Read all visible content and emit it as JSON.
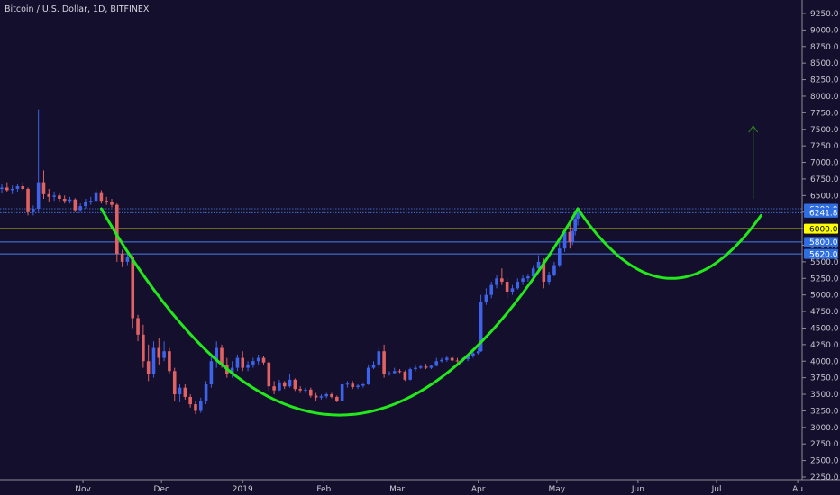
{
  "chart_data": {
    "type": "candlestick",
    "title": "Bitcoin / U.S. Dollar, 1D, BITFINEX",
    "ylim": [
      2250,
      9250
    ],
    "y_ticks": [
      2250,
      2500,
      2750,
      3000,
      3250,
      3500,
      3750,
      4000,
      4250,
      4500,
      4750,
      5000,
      5250,
      5500,
      5750,
      6000,
      6250,
      6500,
      6750,
      7000,
      7250,
      7500,
      7750,
      8000,
      8250,
      8500,
      8750,
      9000,
      9250
    ],
    "y_tick_labels": [
      "2250.0",
      "2500.0",
      "2750.0",
      "3000.0",
      "3250.0",
      "3500.0",
      "3750.0",
      "4000.0",
      "4250.0",
      "4500.0",
      "4750.0",
      "5000.0",
      "5250.0",
      "5500.0",
      "5750.0",
      "6000.0",
      "6250.0",
      "6500.0",
      "6750.0",
      "7000.0",
      "7250.0",
      "7500.0",
      "7750.0",
      "8000.0",
      "8250.0",
      "8500.0",
      "8750.0",
      "9000.0",
      "9250.0"
    ],
    "x_range": [
      "2018-10-01",
      "2019-08-02"
    ],
    "x_ticks": [
      {
        "label": "Nov",
        "date": "2018-11-01"
      },
      {
        "label": "Dec",
        "date": "2018-12-01"
      },
      {
        "label": "2019",
        "date": "2019-01-01"
      },
      {
        "label": "Feb",
        "date": "2019-02-01"
      },
      {
        "label": "Mar",
        "date": "2019-03-01"
      },
      {
        "label": "Apr",
        "date": "2019-04-01"
      },
      {
        "label": "May",
        "date": "2019-05-01"
      },
      {
        "label": "Jun",
        "date": "2019-06-01"
      },
      {
        "label": "Jul",
        "date": "2019-07-01"
      },
      {
        "label": "Au",
        "date": "2019-08-01"
      }
    ],
    "candles": [
      {
        "date": "2018-10-01",
        "o": 6600,
        "h": 6680,
        "l": 6540,
        "c": 6620
      },
      {
        "date": "2018-10-03",
        "o": 6620,
        "h": 6700,
        "l": 6560,
        "c": 6580
      },
      {
        "date": "2018-10-05",
        "o": 6580,
        "h": 6650,
        "l": 6520,
        "c": 6600
      },
      {
        "date": "2018-10-07",
        "o": 6600,
        "h": 6680,
        "l": 6560,
        "c": 6640
      },
      {
        "date": "2018-10-09",
        "o": 6640,
        "h": 6700,
        "l": 6580,
        "c": 6600
      },
      {
        "date": "2018-10-11",
        "o": 6600,
        "h": 6620,
        "l": 6200,
        "c": 6250
      },
      {
        "date": "2018-10-13",
        "o": 6250,
        "h": 6350,
        "l": 6200,
        "c": 6300
      },
      {
        "date": "2018-10-15",
        "o": 6300,
        "h": 7800,
        "l": 6250,
        "c": 6700
      },
      {
        "date": "2018-10-17",
        "o": 6700,
        "h": 6880,
        "l": 6450,
        "c": 6520
      },
      {
        "date": "2018-10-19",
        "o": 6520,
        "h": 6600,
        "l": 6400,
        "c": 6480
      },
      {
        "date": "2018-10-21",
        "o": 6480,
        "h": 6560,
        "l": 6420,
        "c": 6500
      },
      {
        "date": "2018-10-23",
        "o": 6500,
        "h": 6540,
        "l": 6400,
        "c": 6450
      },
      {
        "date": "2018-10-25",
        "o": 6450,
        "h": 6500,
        "l": 6380,
        "c": 6420
      },
      {
        "date": "2018-10-27",
        "o": 6420,
        "h": 6480,
        "l": 6380,
        "c": 6440
      },
      {
        "date": "2018-10-29",
        "o": 6440,
        "h": 6460,
        "l": 6250,
        "c": 6280
      },
      {
        "date": "2018-10-31",
        "o": 6280,
        "h": 6380,
        "l": 6250,
        "c": 6340
      },
      {
        "date": "2018-11-02",
        "o": 6340,
        "h": 6450,
        "l": 6300,
        "c": 6400
      },
      {
        "date": "2018-11-04",
        "o": 6400,
        "h": 6480,
        "l": 6360,
        "c": 6420
      },
      {
        "date": "2018-11-06",
        "o": 6420,
        "h": 6620,
        "l": 6400,
        "c": 6550
      },
      {
        "date": "2018-11-08",
        "o": 6550,
        "h": 6580,
        "l": 6380,
        "c": 6420
      },
      {
        "date": "2018-11-10",
        "o": 6420,
        "h": 6480,
        "l": 6360,
        "c": 6400
      },
      {
        "date": "2018-11-12",
        "o": 6400,
        "h": 6450,
        "l": 6320,
        "c": 6360
      },
      {
        "date": "2018-11-14",
        "o": 6360,
        "h": 6380,
        "l": 5500,
        "c": 5620
      },
      {
        "date": "2018-11-16",
        "o": 5620,
        "h": 5680,
        "l": 5420,
        "c": 5500
      },
      {
        "date": "2018-11-18",
        "o": 5500,
        "h": 5620,
        "l": 5450,
        "c": 5580
      },
      {
        "date": "2018-11-20",
        "o": 5580,
        "h": 5600,
        "l": 4500,
        "c": 4650
      },
      {
        "date": "2018-11-22",
        "o": 4650,
        "h": 4700,
        "l": 4300,
        "c": 4400
      },
      {
        "date": "2018-11-24",
        "o": 4400,
        "h": 4550,
        "l": 3900,
        "c": 4000
      },
      {
        "date": "2018-11-26",
        "o": 4000,
        "h": 4250,
        "l": 3700,
        "c": 3800
      },
      {
        "date": "2018-11-28",
        "o": 3800,
        "h": 4300,
        "l": 3750,
        "c": 4200
      },
      {
        "date": "2018-11-30",
        "o": 4200,
        "h": 4350,
        "l": 3950,
        "c": 4050
      },
      {
        "date": "2018-12-02",
        "o": 4050,
        "h": 4300,
        "l": 4000,
        "c": 4150
      },
      {
        "date": "2018-12-04",
        "o": 4150,
        "h": 4200,
        "l": 3800,
        "c": 3850
      },
      {
        "date": "2018-12-06",
        "o": 3850,
        "h": 3900,
        "l": 3400,
        "c": 3500
      },
      {
        "date": "2018-12-08",
        "o": 3500,
        "h": 3650,
        "l": 3380,
        "c": 3600
      },
      {
        "date": "2018-12-10",
        "o": 3600,
        "h": 3650,
        "l": 3420,
        "c": 3460
      },
      {
        "date": "2018-12-12",
        "o": 3460,
        "h": 3500,
        "l": 3300,
        "c": 3350
      },
      {
        "date": "2018-12-14",
        "o": 3350,
        "h": 3400,
        "l": 3200,
        "c": 3250
      },
      {
        "date": "2018-12-16",
        "o": 3250,
        "h": 3450,
        "l": 3220,
        "c": 3400
      },
      {
        "date": "2018-12-18",
        "o": 3400,
        "h": 3700,
        "l": 3350,
        "c": 3650
      },
      {
        "date": "2018-12-20",
        "o": 3650,
        "h": 4100,
        "l": 3600,
        "c": 4000
      },
      {
        "date": "2018-12-22",
        "o": 4000,
        "h": 4300,
        "l": 3900,
        "c": 4200
      },
      {
        "date": "2018-12-24",
        "o": 4200,
        "h": 4250,
        "l": 3900,
        "c": 3950
      },
      {
        "date": "2018-12-26",
        "o": 3950,
        "h": 4050,
        "l": 3750,
        "c": 3800
      },
      {
        "date": "2018-12-28",
        "o": 3800,
        "h": 4000,
        "l": 3750,
        "c": 3900
      },
      {
        "date": "2018-12-30",
        "o": 3900,
        "h": 4100,
        "l": 3850,
        "c": 4050
      },
      {
        "date": "2019-01-01",
        "o": 4050,
        "h": 4150,
        "l": 3850,
        "c": 3900
      },
      {
        "date": "2019-01-03",
        "o": 3900,
        "h": 4000,
        "l": 3850,
        "c": 3950
      },
      {
        "date": "2019-01-05",
        "o": 3950,
        "h": 4050,
        "l": 3900,
        "c": 4000
      },
      {
        "date": "2019-01-07",
        "o": 4000,
        "h": 4100,
        "l": 3950,
        "c": 4050
      },
      {
        "date": "2019-01-09",
        "o": 4050,
        "h": 4080,
        "l": 3950,
        "c": 3980
      },
      {
        "date": "2019-01-11",
        "o": 3980,
        "h": 4000,
        "l": 3550,
        "c": 3620
      },
      {
        "date": "2019-01-13",
        "o": 3620,
        "h": 3700,
        "l": 3500,
        "c": 3560
      },
      {
        "date": "2019-01-15",
        "o": 3560,
        "h": 3720,
        "l": 3550,
        "c": 3680
      },
      {
        "date": "2019-01-17",
        "o": 3680,
        "h": 3700,
        "l": 3580,
        "c": 3620
      },
      {
        "date": "2019-01-19",
        "o": 3620,
        "h": 3800,
        "l": 3600,
        "c": 3720
      },
      {
        "date": "2019-01-21",
        "o": 3720,
        "h": 3740,
        "l": 3550,
        "c": 3580
      },
      {
        "date": "2019-01-23",
        "o": 3580,
        "h": 3620,
        "l": 3520,
        "c": 3560
      },
      {
        "date": "2019-01-25",
        "o": 3560,
        "h": 3600,
        "l": 3520,
        "c": 3570
      },
      {
        "date": "2019-01-27",
        "o": 3570,
        "h": 3600,
        "l": 3450,
        "c": 3480
      },
      {
        "date": "2019-01-29",
        "o": 3480,
        "h": 3520,
        "l": 3400,
        "c": 3450
      },
      {
        "date": "2019-01-31",
        "o": 3450,
        "h": 3500,
        "l": 3420,
        "c": 3470
      },
      {
        "date": "2019-02-02",
        "o": 3470,
        "h": 3520,
        "l": 3440,
        "c": 3500
      },
      {
        "date": "2019-02-04",
        "o": 3500,
        "h": 3520,
        "l": 3440,
        "c": 3460
      },
      {
        "date": "2019-02-06",
        "o": 3460,
        "h": 3480,
        "l": 3380,
        "c": 3400
      },
      {
        "date": "2019-02-08",
        "o": 3400,
        "h": 3700,
        "l": 3390,
        "c": 3650
      },
      {
        "date": "2019-02-10",
        "o": 3650,
        "h": 3700,
        "l": 3600,
        "c": 3660
      },
      {
        "date": "2019-02-12",
        "o": 3660,
        "h": 3700,
        "l": 3580,
        "c": 3610
      },
      {
        "date": "2019-02-14",
        "o": 3610,
        "h": 3650,
        "l": 3580,
        "c": 3630
      },
      {
        "date": "2019-02-16",
        "o": 3630,
        "h": 3680,
        "l": 3600,
        "c": 3650
      },
      {
        "date": "2019-02-18",
        "o": 3650,
        "h": 3950,
        "l": 3640,
        "c": 3900
      },
      {
        "date": "2019-02-20",
        "o": 3900,
        "h": 4000,
        "l": 3880,
        "c": 3950
      },
      {
        "date": "2019-02-22",
        "o": 3950,
        "h": 4200,
        "l": 3900,
        "c": 4150
      },
      {
        "date": "2019-02-24",
        "o": 4150,
        "h": 4250,
        "l": 3750,
        "c": 3800
      },
      {
        "date": "2019-02-26",
        "o": 3800,
        "h": 3850,
        "l": 3780,
        "c": 3820
      },
      {
        "date": "2019-02-28",
        "o": 3820,
        "h": 3900,
        "l": 3800,
        "c": 3850
      },
      {
        "date": "2019-03-02",
        "o": 3850,
        "h": 3880,
        "l": 3820,
        "c": 3840
      },
      {
        "date": "2019-03-04",
        "o": 3840,
        "h": 3860,
        "l": 3700,
        "c": 3720
      },
      {
        "date": "2019-03-06",
        "o": 3720,
        "h": 3900,
        "l": 3710,
        "c": 3880
      },
      {
        "date": "2019-03-08",
        "o": 3880,
        "h": 3950,
        "l": 3850,
        "c": 3900
      },
      {
        "date": "2019-03-10",
        "o": 3900,
        "h": 3950,
        "l": 3880,
        "c": 3920
      },
      {
        "date": "2019-03-12",
        "o": 3920,
        "h": 3960,
        "l": 3880,
        "c": 3900
      },
      {
        "date": "2019-03-14",
        "o": 3900,
        "h": 3950,
        "l": 3880,
        "c": 3930
      },
      {
        "date": "2019-03-16",
        "o": 3930,
        "h": 4050,
        "l": 3920,
        "c": 4000
      },
      {
        "date": "2019-03-18",
        "o": 4000,
        "h": 4050,
        "l": 3980,
        "c": 4020
      },
      {
        "date": "2019-03-20",
        "o": 4020,
        "h": 4080,
        "l": 3990,
        "c": 4050
      },
      {
        "date": "2019-03-22",
        "o": 4050,
        "h": 4080,
        "l": 3990,
        "c": 4010
      },
      {
        "date": "2019-03-24",
        "o": 4010,
        "h": 4050,
        "l": 3980,
        "c": 4000
      },
      {
        "date": "2019-03-26",
        "o": 4000,
        "h": 4050,
        "l": 3980,
        "c": 4030
      },
      {
        "date": "2019-03-28",
        "o": 4030,
        "h": 4100,
        "l": 4000,
        "c": 4080
      },
      {
        "date": "2019-03-30",
        "o": 4080,
        "h": 4150,
        "l": 4050,
        "c": 4120
      },
      {
        "date": "2019-04-01",
        "o": 4120,
        "h": 4200,
        "l": 4100,
        "c": 4150
      },
      {
        "date": "2019-04-02",
        "o": 4150,
        "h": 5000,
        "l": 4140,
        "c": 4900
      },
      {
        "date": "2019-04-04",
        "o": 4900,
        "h": 5100,
        "l": 4850,
        "c": 5000
      },
      {
        "date": "2019-04-06",
        "o": 5000,
        "h": 5200,
        "l": 4950,
        "c": 5150
      },
      {
        "date": "2019-04-08",
        "o": 5150,
        "h": 5300,
        "l": 5100,
        "c": 5250
      },
      {
        "date": "2019-04-10",
        "o": 5250,
        "h": 5400,
        "l": 5150,
        "c": 5200
      },
      {
        "date": "2019-04-12",
        "o": 5200,
        "h": 5250,
        "l": 4950,
        "c": 5050
      },
      {
        "date": "2019-04-14",
        "o": 5050,
        "h": 5150,
        "l": 5000,
        "c": 5100
      },
      {
        "date": "2019-04-16",
        "o": 5100,
        "h": 5250,
        "l": 5080,
        "c": 5200
      },
      {
        "date": "2019-04-18",
        "o": 5200,
        "h": 5300,
        "l": 5150,
        "c": 5250
      },
      {
        "date": "2019-04-20",
        "o": 5250,
        "h": 5320,
        "l": 5200,
        "c": 5280
      },
      {
        "date": "2019-04-22",
        "o": 5280,
        "h": 5450,
        "l": 5250,
        "c": 5400
      },
      {
        "date": "2019-04-24",
        "o": 5400,
        "h": 5600,
        "l": 5350,
        "c": 5500
      },
      {
        "date": "2019-04-26",
        "o": 5500,
        "h": 5550,
        "l": 5100,
        "c": 5200
      },
      {
        "date": "2019-04-28",
        "o": 5200,
        "h": 5350,
        "l": 5150,
        "c": 5300
      },
      {
        "date": "2019-04-30",
        "o": 5300,
        "h": 5500,
        "l": 5280,
        "c": 5450
      },
      {
        "date": "2019-05-02",
        "o": 5450,
        "h": 5800,
        "l": 5420,
        "c": 5700
      },
      {
        "date": "2019-05-04",
        "o": 5700,
        "h": 6000,
        "l": 5650,
        "c": 5950
      },
      {
        "date": "2019-05-06",
        "o": 5950,
        "h": 6100,
        "l": 5700,
        "c": 5800
      },
      {
        "date": "2019-05-07",
        "o": 5800,
        "h": 6000,
        "l": 5750,
        "c": 5960
      },
      {
        "date": "2019-05-08",
        "o": 5960,
        "h": 6280,
        "l": 5900,
        "c": 6150
      },
      {
        "date": "2019-05-09",
        "o": 6150,
        "h": 6300,
        "l": 6050,
        "c": 6242
      }
    ],
    "series": [
      {
        "type": "curve",
        "color": "#22e81c",
        "x": [
          "2018-11-08",
          "2019-02-01",
          "2019-05-09"
        ],
        "y": [
          6300,
          3200,
          6300
        ]
      },
      {
        "type": "curve",
        "color": "#22e81c",
        "x": [
          "2019-05-09",
          "2019-06-13",
          "2019-07-18"
        ],
        "y": [
          6300,
          5250,
          6200
        ]
      }
    ],
    "annotations": {
      "arrow": {
        "x": "2019-07-15",
        "y_from": 6450,
        "y_to": 7550,
        "color": "#2e7d23"
      },
      "levels": [
        {
          "value": 6300,
          "label": "6300.0",
          "color": "#4a7de8",
          "style": "dotted",
          "label_bg": "#2f6ee0",
          "label_fg": "#ffffff"
        },
        {
          "value": 6241.8,
          "label": "6241.8",
          "color": "#4a7de8",
          "style": "dotted",
          "label_bg": "#2f6ee0",
          "label_fg": "#ffffff"
        },
        {
          "value": 6000,
          "label": "6000.0",
          "color": "#ffff00",
          "style": "solid",
          "label_bg": "#ffff00",
          "label_fg": "#000000"
        },
        {
          "value": 5800,
          "label": "5800.0",
          "color": "#4a7de8",
          "style": "solid",
          "label_bg": "#2f6ee0",
          "label_fg": "#ffffff"
        },
        {
          "value": 5620,
          "label": "5620.0",
          "color": "#4a7de8",
          "style": "solid",
          "label_bg": "#2f6ee0",
          "label_fg": "#ffffff"
        }
      ]
    },
    "colors": {
      "background": "#130f2c",
      "up": "#3d63ea",
      "down": "#e06262",
      "axis_line": "#8f8c9c",
      "text": "#c9c7d3"
    }
  }
}
